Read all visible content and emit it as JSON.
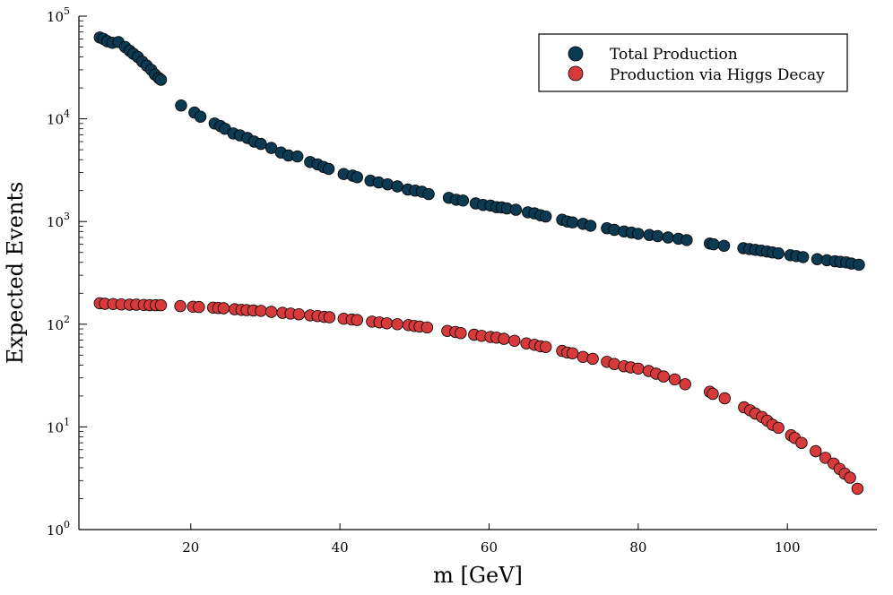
{
  "chart_data": {
    "type": "scatter",
    "title": "",
    "xlabel": "m [GeV]",
    "ylabel": "Expected Events",
    "xlim": [
      5,
      112
    ],
    "ylim_log10": [
      0,
      5
    ],
    "yscale": "log",
    "grid": false,
    "legend_position": "top-right",
    "x_ticks": [
      20,
      40,
      60,
      80,
      100
    ],
    "y_tick_labels": [
      {
        "base": "10",
        "exp": "0",
        "value": 1
      },
      {
        "base": "10",
        "exp": "1",
        "value": 10
      },
      {
        "base": "10",
        "exp": "2",
        "value": 100
      },
      {
        "base": "10",
        "exp": "3",
        "value": 1000
      },
      {
        "base": "10",
        "exp": "4",
        "value": 10000
      },
      {
        "base": "10",
        "exp": "5",
        "value": 100000
      }
    ],
    "series": [
      {
        "name": "Total Production",
        "color": "#0b3a52",
        "x": [
          7.8,
          8.3,
          8.8,
          9.5,
          10.3,
          11.2,
          11.8,
          12.3,
          12.9,
          13.5,
          14.1,
          14.7,
          15.2,
          15.7,
          16.0,
          18.7,
          20.5,
          21.3,
          23.2,
          24.0,
          24.6,
          25.7,
          26.6,
          27.6,
          28.5,
          29.4,
          30.8,
          32.1,
          33.1,
          34.3,
          36.0,
          37.0,
          37.8,
          38.5,
          40.5,
          41.7,
          42.3,
          44.1,
          45.2,
          46.4,
          47.7,
          49.1,
          50.1,
          51.0,
          51.9,
          54.6,
          55.6,
          56.5,
          58.2,
          59.2,
          60.2,
          61.0,
          61.7,
          62.4,
          63.6,
          65.2,
          66.1,
          66.9,
          67.6,
          69.8,
          70.5,
          71.2,
          72.6,
          73.6,
          75.8,
          76.8,
          78.1,
          79.1,
          80.0,
          81.5,
          82.6,
          84.0,
          85.4,
          86.5,
          89.6,
          90.1,
          91.5,
          94.1,
          94.9,
          95.7,
          96.5,
          97.3,
          98.0,
          98.8,
          100.4,
          101.2,
          102.1,
          104.0,
          105.3,
          106.4,
          107.1,
          107.9,
          108.6,
          109.6
        ],
        "values": [
          62000,
          60000,
          57000,
          55000,
          56000,
          50000,
          46000,
          43000,
          40000,
          36000,
          33000,
          30000,
          27000,
          25000,
          24000,
          13500,
          11500,
          10500,
          9000,
          8500,
          8000,
          7200,
          6900,
          6500,
          6000,
          5700,
          5200,
          4700,
          4400,
          4300,
          3800,
          3600,
          3400,
          3250,
          2900,
          2800,
          2700,
          2500,
          2400,
          2300,
          2200,
          2050,
          2000,
          1950,
          1850,
          1700,
          1630,
          1600,
          1500,
          1450,
          1430,
          1380,
          1370,
          1340,
          1300,
          1230,
          1200,
          1150,
          1120,
          1040,
          1000,
          980,
          950,
          910,
          860,
          830,
          800,
          780,
          760,
          740,
          720,
          700,
          680,
          660,
          610,
          600,
          580,
          550,
          540,
          530,
          520,
          510,
          500,
          490,
          470,
          460,
          450,
          430,
          420,
          410,
          405,
          400,
          390,
          380
        ]
      },
      {
        "name": "Production via Higgs Decay",
        "color": "#d63a3a",
        "x": [
          7.8,
          8.5,
          9.6,
          10.7,
          11.8,
          12.7,
          13.7,
          14.5,
          15.3,
          16.0,
          18.6,
          20.3,
          21.1,
          23.0,
          23.7,
          24.4,
          25.9,
          26.8,
          27.5,
          28.4,
          29.4,
          30.8,
          32.3,
          33.4,
          34.5,
          36.0,
          37.0,
          37.9,
          38.6,
          40.5,
          41.6,
          42.3,
          44.3,
          45.3,
          46.3,
          47.7,
          49.2,
          50.0,
          50.7,
          51.7,
          54.4,
          55.5,
          56.2,
          58.0,
          59.0,
          60.2,
          61.0,
          62.0,
          63.4,
          65.0,
          66.1,
          66.9,
          67.6,
          69.8,
          70.5,
          71.2,
          72.6,
          73.9,
          75.8,
          76.8,
          78.1,
          79.0,
          80.0,
          81.4,
          82.4,
          83.4,
          84.9,
          86.3,
          89.6,
          90.0,
          91.6,
          94.2,
          95.0,
          95.7,
          96.6,
          97.3,
          98.0,
          98.8,
          100.5,
          101.0,
          101.9,
          103.8,
          105.1,
          106.2,
          107.0,
          107.7,
          108.4,
          109.4
        ],
        "values": [
          160,
          158,
          157,
          156,
          155,
          155,
          154,
          153,
          153,
          153,
          150,
          148,
          147,
          145,
          144,
          143,
          140,
          138,
          137,
          136,
          135,
          132,
          129,
          127,
          125,
          122,
          120,
          118,
          117,
          113,
          111,
          110,
          106,
          104,
          102,
          100,
          98,
          96,
          95,
          93,
          86,
          84,
          82,
          79,
          77,
          75,
          74,
          72,
          69,
          65,
          63,
          61,
          60,
          55,
          53,
          52,
          48,
          46,
          43,
          41,
          39,
          38,
          37,
          35,
          33,
          31,
          29,
          26,
          22,
          21,
          19,
          15.5,
          14.5,
          13.5,
          12.5,
          11.5,
          10.5,
          9.8,
          8.3,
          7.8,
          7.0,
          5.8,
          5.0,
          4.4,
          3.9,
          3.5,
          3.2,
          2.5
        ]
      }
    ]
  }
}
